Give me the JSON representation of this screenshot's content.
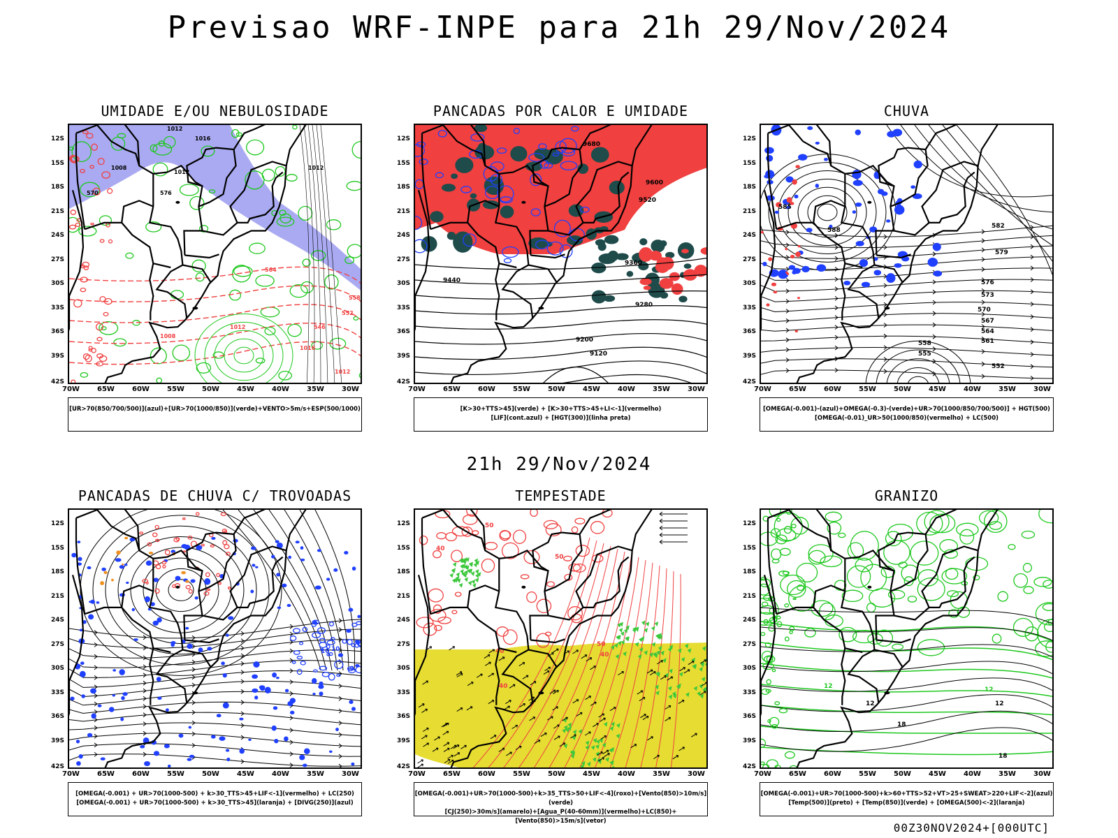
{
  "title": "Previsao WRF-INPE  para 21h 29/Nov/2024",
  "subtitle": "21h 29/Nov/2024",
  "footer": "00Z30NOV2024+[000UTC]",
  "lat_labels": [
    "12S",
    "15S",
    "18S",
    "21S",
    "24S",
    "27S",
    "30S",
    "33S",
    "36S",
    "39S",
    "42S"
  ],
  "lon_labels": [
    "70W",
    "65W",
    "60W",
    "55W",
    "50W",
    "45W",
    "40W",
    "35W",
    "30W"
  ],
  "colors": {
    "humid_blue": "#9b9bf0",
    "green": "#1ec81e",
    "red": "#f04040",
    "dark_teal": "#1f4b4b",
    "yellow": "#e6dc32",
    "blue_contour": "#2040ff"
  },
  "panels": [
    {
      "title": "UMIDADE E/OU NEBULOSIDADE",
      "legend": [
        "[UR>70(850/700/500)](azul)+[UR>70(1000/850)](verde)+VENTO>5m/s+ESP(500/1000)"
      ],
      "contour_labels": [
        "1012",
        "1008",
        "1012",
        "1016",
        "1012",
        "576",
        "570",
        "564",
        "558",
        "552",
        "546",
        "1016"
      ]
    },
    {
      "title": "PANCADAS POR CALOR E UMIDADE",
      "legend": [
        "[K>30+TTS>45](verde) + [K>30+TTS>45+LI<-1](vermelho)",
        "[LIF](cont.azul) + [HGT(300)](linha preta)"
      ],
      "contour_labels": [
        "9680",
        "9600",
        "9520",
        "9440",
        "9360",
        "9280",
        "9200",
        "9120"
      ]
    },
    {
      "title": "CHUVA",
      "legend": [
        "[OMEGA(-0.001)-(azul)+OMEGA(-0.3)-(verde)+UR>70(1000/850/700/500)] + HGT(500)",
        "[OMEGA(-0.01)_UR>50(1000/850)(vermelho) + LC(500)"
      ],
      "contour_labels": [
        "588",
        "585",
        "582",
        "579",
        "576",
        "573",
        "570",
        "567",
        "564",
        "561",
        "558",
        "555",
        "552"
      ]
    },
    {
      "title": "PANCADAS DE CHUVA C/ TROVOADAS",
      "legend": [
        "[OMEGA(-0.001) + UR>70(1000-500) + k>30_TTS>45+LIF<-1](vermelho) + LC(250)",
        "[OMEGA(-0.001) + UR>70(1000-500) + k>30_TTS>45](laranja) + [DIVG(250)](azul)"
      ],
      "contour_labels": [
        "10"
      ]
    },
    {
      "title": "TEMPESTADE",
      "legend": [
        "[OMEGA(-0.001)+UR>70(1000-500)+k>35_TTS>50+LIF<-4](roxo)+[Vento(850)>10m/s](verde)",
        "[CJ(250)>30m/s](amarelo)+[Agua_P(40-60mm)](vermelho)+LC(850)+[Vento(850)>15m/s](vetor)"
      ],
      "contour_labels": [
        "50",
        "40"
      ]
    },
    {
      "title": "GRANIZO",
      "legend": [
        "[OMEGA(-0.001)+UR>70(1000-500)+k>60+TTS>52+VT>25+SWEAT>220+LIF<-2](azul)",
        "[Temp(500)](preto) + [Temp(850)](verde) + [OMEGA(500)<-2](laranja)"
      ],
      "contour_labels": [
        "12",
        "18"
      ]
    }
  ]
}
